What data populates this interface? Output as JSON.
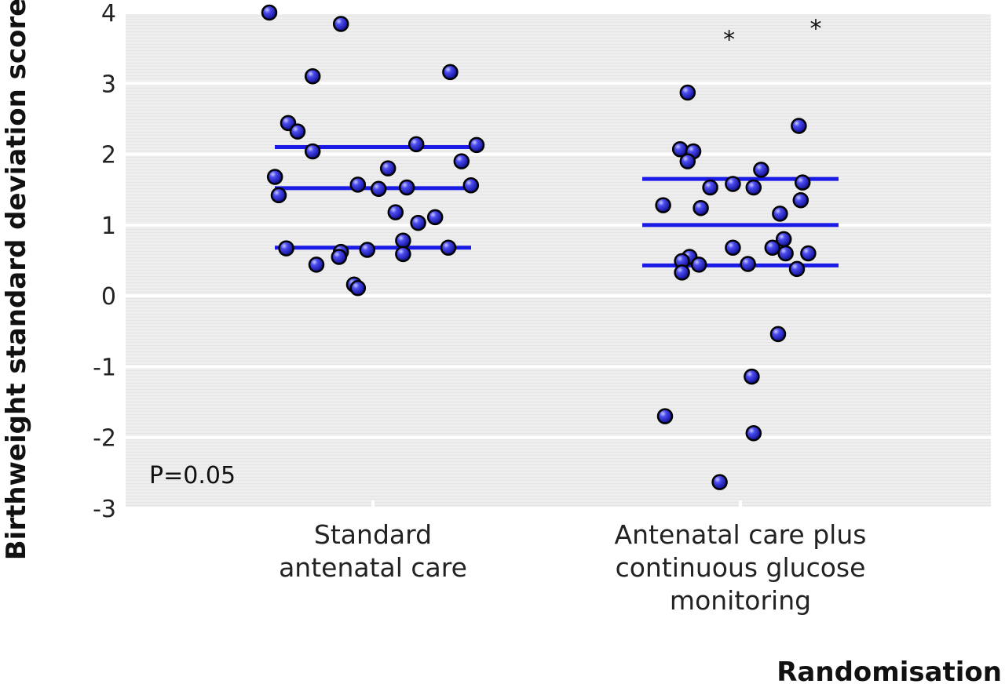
{
  "chart_data": {
    "type": "scatter",
    "title": "",
    "xlabel": "Randomisation",
    "ylabel": "Birthweight standard deviation score",
    "ylim": [
      -3,
      4
    ],
    "yticks": [
      4,
      3,
      2,
      1,
      0,
      -1,
      -2,
      -3
    ],
    "grid": true,
    "annotation": "P=0.05",
    "categories": [
      {
        "lines": [
          "Standard",
          "antenatal care"
        ]
      },
      {
        "lines": [
          "Antenatal care plus",
          "continuous glucose",
          "monitoring"
        ]
      }
    ],
    "series": [
      {
        "category_index": 0,
        "summary_lines": [
          2.1,
          1.52,
          0.68
        ],
        "points": [
          {
            "jitter": -0.55,
            "y": 4.0
          },
          {
            "jitter": -0.17,
            "y": 3.84
          },
          {
            "jitter": -0.32,
            "y": 3.1
          },
          {
            "jitter": 0.41,
            "y": 3.16
          },
          {
            "jitter": -0.45,
            "y": 2.44
          },
          {
            "jitter": -0.4,
            "y": 2.32
          },
          {
            "jitter": -0.32,
            "y": 2.04
          },
          {
            "jitter": 0.23,
            "y": 2.14
          },
          {
            "jitter": 0.55,
            "y": 2.13
          },
          {
            "jitter": 0.47,
            "y": 1.9
          },
          {
            "jitter": -0.52,
            "y": 1.68
          },
          {
            "jitter": -0.5,
            "y": 1.42
          },
          {
            "jitter": -0.08,
            "y": 1.57
          },
          {
            "jitter": 0.03,
            "y": 1.51
          },
          {
            "jitter": 0.18,
            "y": 1.53
          },
          {
            "jitter": 0.52,
            "y": 1.56
          },
          {
            "jitter": 0.08,
            "y": 1.8
          },
          {
            "jitter": 0.12,
            "y": 1.18
          },
          {
            "jitter": 0.24,
            "y": 1.03
          },
          {
            "jitter": 0.33,
            "y": 1.11
          },
          {
            "jitter": 0.16,
            "y": 0.78
          },
          {
            "jitter": -0.46,
            "y": 0.67
          },
          {
            "jitter": -0.17,
            "y": 0.62
          },
          {
            "jitter": -0.18,
            "y": 0.55
          },
          {
            "jitter": -0.03,
            "y": 0.65
          },
          {
            "jitter": 0.16,
            "y": 0.59
          },
          {
            "jitter": 0.4,
            "y": 0.68
          },
          {
            "jitter": -0.3,
            "y": 0.44
          },
          {
            "jitter": -0.1,
            "y": 0.16
          },
          {
            "jitter": -0.08,
            "y": 0.11
          }
        ]
      },
      {
        "category_index": 1,
        "summary_lines": [
          1.65,
          1.0,
          0.43
        ],
        "outlier_markers": [
          {
            "jitter": -0.06,
            "y": 3.66
          },
          {
            "jitter": 0.4,
            "y": 3.82
          }
        ],
        "points": [
          {
            "jitter": -0.28,
            "y": 2.87
          },
          {
            "jitter": 0.31,
            "y": 2.4
          },
          {
            "jitter": -0.32,
            "y": 2.07
          },
          {
            "jitter": -0.25,
            "y": 2.04
          },
          {
            "jitter": -0.28,
            "y": 1.9
          },
          {
            "jitter": 0.11,
            "y": 1.78
          },
          {
            "jitter": -0.16,
            "y": 1.53
          },
          {
            "jitter": -0.04,
            "y": 1.58
          },
          {
            "jitter": 0.07,
            "y": 1.53
          },
          {
            "jitter": 0.33,
            "y": 1.6
          },
          {
            "jitter": 0.32,
            "y": 1.35
          },
          {
            "jitter": -0.41,
            "y": 1.28
          },
          {
            "jitter": -0.21,
            "y": 1.24
          },
          {
            "jitter": 0.21,
            "y": 1.16
          },
          {
            "jitter": 0.23,
            "y": 0.8
          },
          {
            "jitter": 0.17,
            "y": 0.68
          },
          {
            "jitter": -0.04,
            "y": 0.68
          },
          {
            "jitter": 0.24,
            "y": 0.6
          },
          {
            "jitter": 0.36,
            "y": 0.6
          },
          {
            "jitter": -0.27,
            "y": 0.55
          },
          {
            "jitter": -0.31,
            "y": 0.49
          },
          {
            "jitter": -0.22,
            "y": 0.44
          },
          {
            "jitter": 0.04,
            "y": 0.45
          },
          {
            "jitter": 0.3,
            "y": 0.38
          },
          {
            "jitter": -0.31,
            "y": 0.33
          },
          {
            "jitter": 0.2,
            "y": -0.54
          },
          {
            "jitter": 0.06,
            "y": -1.14
          },
          {
            "jitter": -0.4,
            "y": -1.7
          },
          {
            "jitter": 0.07,
            "y": -1.94
          },
          {
            "jitter": -0.11,
            "y": -2.63
          }
        ]
      }
    ]
  },
  "colors": {
    "point": "#2f2fe0",
    "point_highlight": "#b9b9ff",
    "point_outline": "#000000",
    "summary_line": "#1a1ae6",
    "plot_bg": "#ececec",
    "grid": "#ffffff"
  }
}
